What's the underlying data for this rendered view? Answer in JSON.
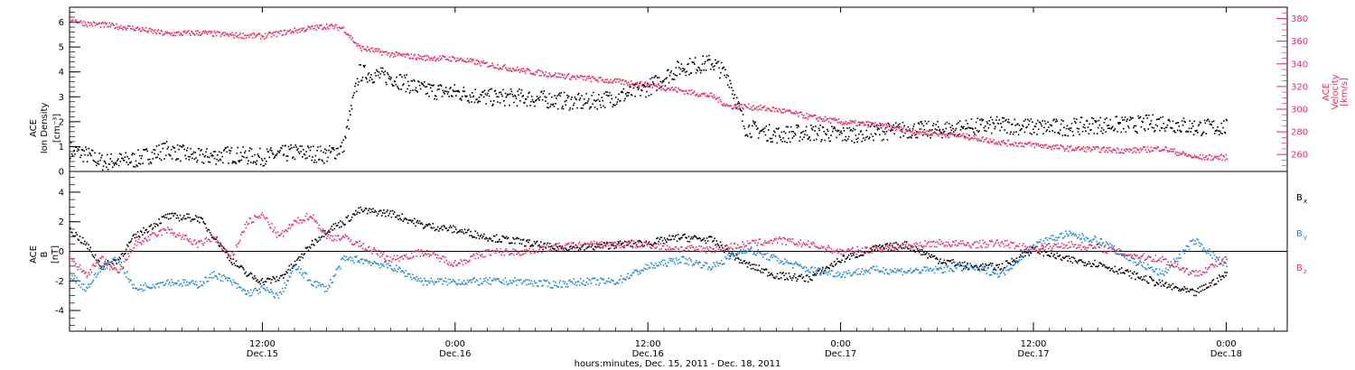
{
  "colors": {
    "black": "#000000",
    "velocity": "#ee2a5a",
    "by": "#1e8ad8",
    "bz": "#e8335f"
  },
  "xaxis": {
    "ticks": [
      {
        "t": 12,
        "time": "12:00",
        "date": "Dec.15"
      },
      {
        "t": 24,
        "time": "0:00",
        "date": "Dec.16"
      },
      {
        "t": 36,
        "time": "12:00",
        "date": "Dec.16"
      },
      {
        "t": 48,
        "time": "0:00",
        "date": "Dec.17"
      },
      {
        "t": 60,
        "time": "12:00",
        "date": "Dec.17"
      },
      {
        "t": 72,
        "time": "0:00",
        "date": "Dec.18"
      }
    ],
    "title": "hours:minutes, Dec. 15, 2011 - Dec. 18, 2011"
  },
  "chart_data": [
    {
      "type": "scatter",
      "panel": "ion density and velocity",
      "ylabel_left": [
        "ACE",
        "Ion Density",
        "[cm⁻³]"
      ],
      "ylabel_right": [
        "ACE",
        "Velocity",
        "[km/s]"
      ],
      "ylim_left": [
        0,
        6.6
      ],
      "ylim_right": [
        245,
        390
      ],
      "yticks_left": [
        0,
        1,
        2,
        3,
        4,
        5,
        6
      ],
      "yticks_right": [
        260,
        280,
        300,
        320,
        340,
        360,
        380
      ],
      "x_range_hours": [
        0,
        75.8
      ],
      "series": [
        {
          "axis": "left",
          "color": "black",
          "x": [
            0,
            1,
            2,
            4,
            6,
            8,
            10,
            12,
            14,
            16,
            17,
            18,
            20,
            22,
            24,
            26,
            28,
            30,
            32,
            34,
            36,
            38,
            40,
            41,
            42,
            44,
            46,
            48,
            50,
            52,
            54,
            56,
            58,
            60,
            62,
            64,
            66,
            68,
            70,
            72
          ],
          "values": [
            0.9,
            0.7,
            0.4,
            0.5,
            0.9,
            0.6,
            0.7,
            0.6,
            0.8,
            0.7,
            1.0,
            4.0,
            3.8,
            3.3,
            3.2,
            3.0,
            3.0,
            2.9,
            2.8,
            3.0,
            3.4,
            4.2,
            4.4,
            3.8,
            1.8,
            1.5,
            1.6,
            1.5,
            1.6,
            1.7,
            1.7,
            1.8,
            1.9,
            1.8,
            1.8,
            1.9,
            1.9,
            2.0,
            1.8,
            1.8
          ]
        },
        {
          "axis": "right",
          "color": "velocity",
          "x": [
            0,
            1,
            2,
            4,
            6,
            8,
            10,
            12,
            14,
            16,
            17,
            18,
            20,
            22,
            24,
            26,
            28,
            30,
            32,
            34,
            36,
            38,
            40,
            41,
            42,
            44,
            46,
            48,
            50,
            52,
            54,
            56,
            58,
            60,
            62,
            64,
            66,
            68,
            70,
            72
          ],
          "values": [
            380,
            376,
            375,
            372,
            367,
            368,
            366,
            365,
            370,
            374,
            372,
            355,
            349,
            346,
            345,
            340,
            335,
            331,
            328,
            325,
            322,
            317,
            312,
            303,
            303,
            300,
            294,
            289,
            287,
            282,
            279,
            276,
            271,
            269,
            266,
            265,
            264,
            266,
            258,
            258
          ]
        }
      ]
    },
    {
      "type": "scatter",
      "panel": "magnetic field components",
      "ylabel_left": [
        "ACE",
        "B",
        "[nT]"
      ],
      "ylim": [
        -5.4,
        5.4
      ],
      "yticks": [
        -4,
        -2,
        0,
        2,
        4
      ],
      "x_range_hours": [
        0,
        75.8
      ],
      "series": [
        {
          "name": "B",
          "subscript": "x",
          "color": "black",
          "x": [
            0,
            1,
            2,
            3,
            4,
            6,
            8,
            9,
            10,
            11,
            12,
            13,
            14,
            15,
            16,
            17,
            18,
            20,
            22,
            24,
            26,
            28,
            30,
            32,
            34,
            36,
            38,
            40,
            42,
            44,
            46,
            48,
            50,
            52,
            54,
            56,
            58,
            60,
            62,
            64,
            66,
            68,
            70,
            72
          ],
          "values": [
            1.5,
            0.5,
            -1.0,
            -0.5,
            1.0,
            2.4,
            2.3,
            1.0,
            -0.5,
            -1.5,
            -2.0,
            -1.8,
            -0.8,
            0.5,
            1.5,
            2.0,
            2.8,
            2.6,
            1.8,
            1.5,
            1.0,
            0.7,
            0.3,
            0.3,
            0.5,
            0.6,
            1.0,
            0.8,
            -0.8,
            -1.6,
            -1.8,
            -0.5,
            0.2,
            0.5,
            -0.5,
            -1.0,
            -1.0,
            0.2,
            -0.5,
            -0.8,
            -1.5,
            -2.2,
            -2.8,
            -1.5
          ]
        },
        {
          "name": "B",
          "subscript": "y",
          "color": "by",
          "x": [
            0,
            1,
            2,
            3,
            4,
            6,
            8,
            9,
            10,
            11,
            12,
            13,
            14,
            15,
            16,
            17,
            18,
            20,
            22,
            24,
            26,
            28,
            30,
            32,
            34,
            36,
            38,
            40,
            42,
            44,
            46,
            48,
            50,
            52,
            54,
            56,
            58,
            60,
            62,
            64,
            66,
            68,
            70,
            72
          ],
          "values": [
            -1.5,
            -2.5,
            -1.0,
            -0.5,
            -2.5,
            -2.0,
            -2.2,
            -1.5,
            -2.0,
            -2.8,
            -2.5,
            -3.0,
            -1.0,
            -2.0,
            -2.5,
            -0.5,
            -0.5,
            -1.0,
            -2.0,
            -2.0,
            -2.0,
            -2.0,
            -2.2,
            -2.0,
            -2.0,
            -1.0,
            -0.5,
            -1.0,
            0.2,
            -0.5,
            -1.2,
            -1.5,
            -1.2,
            -1.3,
            -1.2,
            -1.0,
            -1.5,
            0.5,
            1.2,
            0.8,
            -0.5,
            -1.5,
            0.8,
            -1.0
          ]
        },
        {
          "name": "B",
          "subscript": "z",
          "color": "bz",
          "x": [
            0,
            1,
            2,
            3,
            4,
            6,
            8,
            9,
            10,
            11,
            12,
            13,
            14,
            15,
            16,
            17,
            18,
            20,
            22,
            24,
            26,
            28,
            30,
            32,
            34,
            36,
            38,
            40,
            42,
            44,
            46,
            48,
            50,
            52,
            54,
            56,
            58,
            60,
            62,
            64,
            66,
            68,
            70,
            72
          ],
          "values": [
            -0.5,
            -1.5,
            -0.5,
            -1.5,
            0.5,
            1.5,
            0.5,
            1.0,
            -0.5,
            2.0,
            2.5,
            1.0,
            2.0,
            2.5,
            1.0,
            1.0,
            0.5,
            -0.5,
            0.0,
            -0.8,
            0.0,
            0.0,
            0.3,
            0.5,
            0.5,
            0.5,
            0.2,
            0.2,
            0.5,
            0.8,
            0.5,
            0.0,
            0.2,
            0.4,
            0.6,
            0.5,
            0.6,
            0.2,
            0.5,
            0.3,
            -0.2,
            -0.5,
            -1.5,
            -0.5
          ]
        }
      ]
    }
  ]
}
